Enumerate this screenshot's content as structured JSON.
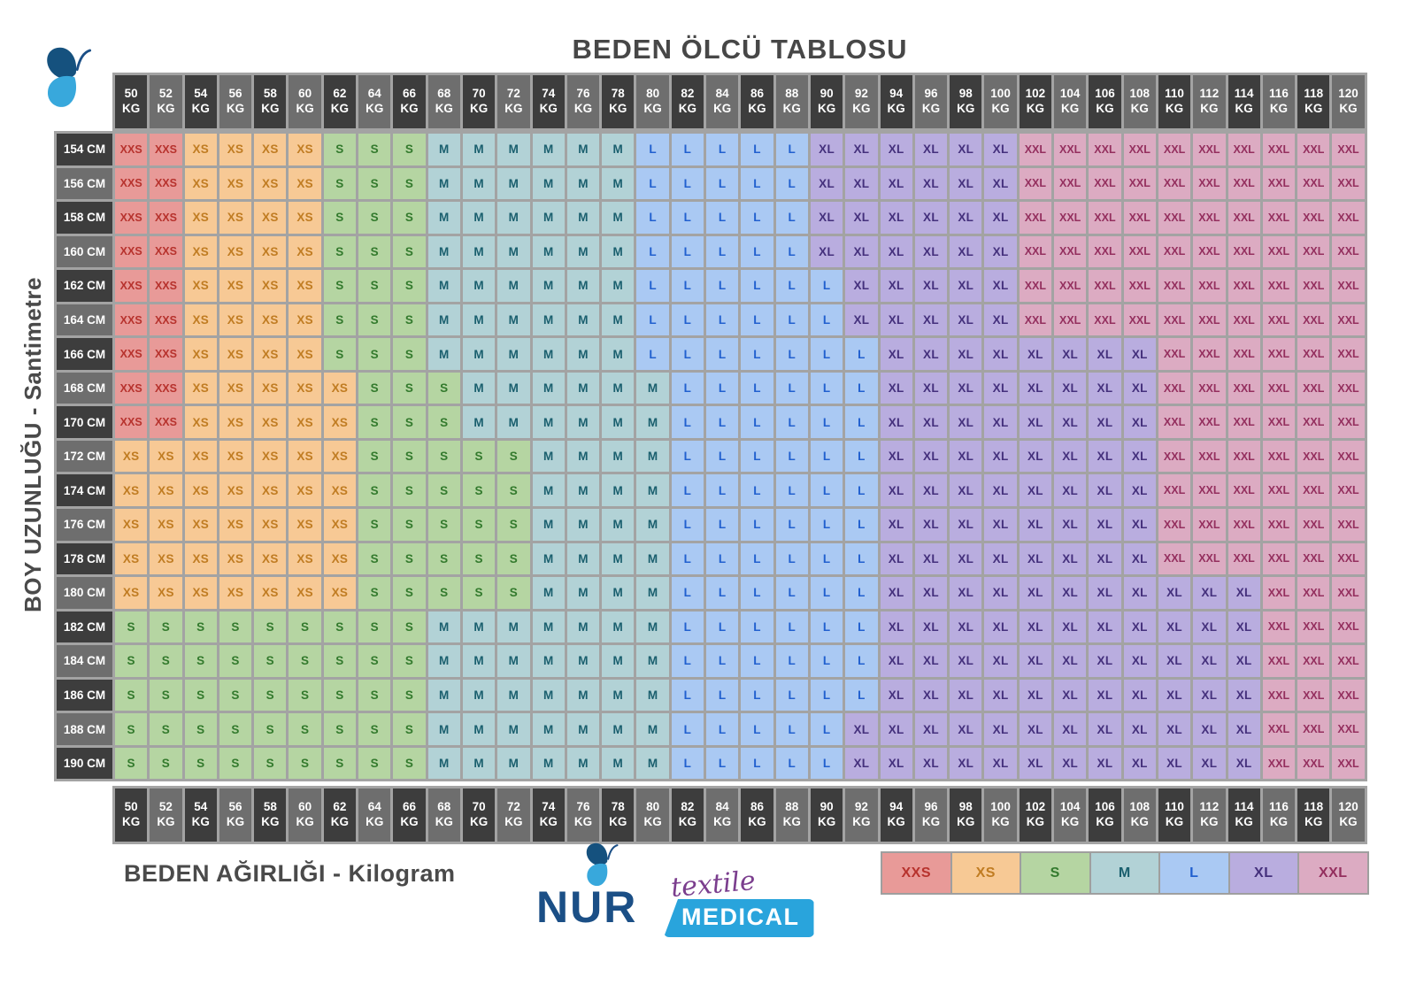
{
  "title": "BEDEN ÖLCÜ TABLOSU",
  "y_axis_label": "BOY UZUNLUĞU - Santimetre",
  "x_axis_label": "BEDEN AĞIRLIĞI - Kilogram",
  "logo": {
    "name": "NUR",
    "tagline_top": "textile",
    "tagline_bottom": "MEDICAL"
  },
  "legend": [
    "XXS",
    "XS",
    "S",
    "M",
    "L",
    "XL",
    "XXL"
  ],
  "size_colors": {
    "XXS": {
      "bg": "#e89a98",
      "fg": "#b7322d"
    },
    "XS": {
      "bg": "#f7c995",
      "fg": "#c07c22"
    },
    "S": {
      "bg": "#b5d5a2",
      "fg": "#337a2d"
    },
    "M": {
      "bg": "#b2d2d6",
      "fg": "#1a5f6e"
    },
    "L": {
      "bg": "#aac9f3",
      "fg": "#2160cf"
    },
    "XL": {
      "bg": "#b9addf",
      "fg": "#44307c"
    },
    "XXL": {
      "bg": "#dcabc2",
      "fg": "#942f5e"
    }
  },
  "header_colors": {
    "dark": "#3d3d3d",
    "light": "#6e6e6e",
    "text": "#ffffff",
    "grid": "#a3a3a3"
  },
  "brand_colors": {
    "dark_blue": "#1b4f86",
    "light_blue": "#29a4dc",
    "purple": "#7b3e8e"
  },
  "chart_data": {
    "type": "heatmap",
    "title": "BEDEN ÖLCÜ TABLOSU",
    "x_label": "BEDEN AĞIRLIĞI - Kilogram",
    "y_label": "BOY UZUNLUĞU - Santimetre",
    "x_unit": "KG",
    "y_unit": "CM",
    "legend_position": "bottom-right",
    "weights_kg": [
      50,
      52,
      54,
      56,
      58,
      60,
      62,
      64,
      66,
      68,
      70,
      72,
      74,
      76,
      78,
      80,
      82,
      84,
      86,
      88,
      90,
      92,
      94,
      96,
      98,
      100,
      102,
      104,
      106,
      108,
      110,
      112,
      114,
      116,
      118,
      120
    ],
    "heights_cm": [
      154,
      156,
      158,
      160,
      162,
      164,
      166,
      168,
      170,
      172,
      174,
      176,
      178,
      180,
      182,
      184,
      186,
      188,
      190
    ],
    "rows": [
      {
        "height_cm": 154,
        "runs": [
          [
            "XXS",
            2
          ],
          [
            "XS",
            4
          ],
          [
            "S",
            3
          ],
          [
            "M",
            6
          ],
          [
            "L",
            5
          ],
          [
            "XL",
            6
          ],
          [
            "XXL",
            10
          ]
        ]
      },
      {
        "height_cm": 156,
        "runs": [
          [
            "XXS",
            2
          ],
          [
            "XS",
            4
          ],
          [
            "S",
            3
          ],
          [
            "M",
            6
          ],
          [
            "L",
            5
          ],
          [
            "XL",
            6
          ],
          [
            "XXL",
            10
          ]
        ]
      },
      {
        "height_cm": 158,
        "runs": [
          [
            "XXS",
            2
          ],
          [
            "XS",
            4
          ],
          [
            "S",
            3
          ],
          [
            "M",
            6
          ],
          [
            "L",
            5
          ],
          [
            "XL",
            6
          ],
          [
            "XXL",
            10
          ]
        ]
      },
      {
        "height_cm": 160,
        "runs": [
          [
            "XXS",
            2
          ],
          [
            "XS",
            4
          ],
          [
            "S",
            3
          ],
          [
            "M",
            6
          ],
          [
            "L",
            5
          ],
          [
            "XL",
            6
          ],
          [
            "XXL",
            10
          ]
        ]
      },
      {
        "height_cm": 162,
        "runs": [
          [
            "XXS",
            2
          ],
          [
            "XS",
            4
          ],
          [
            "S",
            3
          ],
          [
            "M",
            6
          ],
          [
            "L",
            6
          ],
          [
            "XL",
            5
          ],
          [
            "XXL",
            10
          ]
        ]
      },
      {
        "height_cm": 164,
        "runs": [
          [
            "XXS",
            2
          ],
          [
            "XS",
            4
          ],
          [
            "S",
            3
          ],
          [
            "M",
            6
          ],
          [
            "L",
            6
          ],
          [
            "XL",
            5
          ],
          [
            "XXL",
            10
          ]
        ]
      },
      {
        "height_cm": 166,
        "runs": [
          [
            "XXS",
            2
          ],
          [
            "XS",
            4
          ],
          [
            "S",
            3
          ],
          [
            "M",
            6
          ],
          [
            "L",
            7
          ],
          [
            "XL",
            8
          ],
          [
            "XXL",
            6
          ]
        ]
      },
      {
        "height_cm": 168,
        "runs": [
          [
            "XXS",
            2
          ],
          [
            "XS",
            5
          ],
          [
            "S",
            3
          ],
          [
            "M",
            6
          ],
          [
            "L",
            6
          ],
          [
            "XL",
            8
          ],
          [
            "XXL",
            6
          ]
        ]
      },
      {
        "height_cm": 170,
        "runs": [
          [
            "XXS",
            2
          ],
          [
            "XS",
            5
          ],
          [
            "S",
            3
          ],
          [
            "M",
            6
          ],
          [
            "L",
            6
          ],
          [
            "XL",
            8
          ],
          [
            "XXL",
            6
          ]
        ]
      },
      {
        "height_cm": 172,
        "runs": [
          [
            "XS",
            7
          ],
          [
            "S",
            5
          ],
          [
            "M",
            4
          ],
          [
            "L",
            6
          ],
          [
            "XL",
            8
          ],
          [
            "XXL",
            6
          ]
        ]
      },
      {
        "height_cm": 174,
        "runs": [
          [
            "XS",
            7
          ],
          [
            "S",
            5
          ],
          [
            "M",
            4
          ],
          [
            "L",
            6
          ],
          [
            "XL",
            8
          ],
          [
            "XXL",
            6
          ]
        ]
      },
      {
        "height_cm": 176,
        "runs": [
          [
            "XS",
            7
          ],
          [
            "S",
            5
          ],
          [
            "M",
            4
          ],
          [
            "L",
            6
          ],
          [
            "XL",
            8
          ],
          [
            "XXL",
            6
          ]
        ]
      },
      {
        "height_cm": 178,
        "runs": [
          [
            "XS",
            7
          ],
          [
            "S",
            5
          ],
          [
            "M",
            4
          ],
          [
            "L",
            6
          ],
          [
            "XL",
            8
          ],
          [
            "XXL",
            6
          ]
        ]
      },
      {
        "height_cm": 180,
        "runs": [
          [
            "XS",
            7
          ],
          [
            "S",
            5
          ],
          [
            "M",
            4
          ],
          [
            "L",
            6
          ],
          [
            "XL",
            11
          ],
          [
            "XXL",
            3
          ]
        ]
      },
      {
        "height_cm": 182,
        "runs": [
          [
            "S",
            9
          ],
          [
            "M",
            7
          ],
          [
            "L",
            6
          ],
          [
            "XL",
            11
          ],
          [
            "XXL",
            3
          ]
        ]
      },
      {
        "height_cm": 184,
        "runs": [
          [
            "S",
            9
          ],
          [
            "M",
            7
          ],
          [
            "L",
            6
          ],
          [
            "XL",
            11
          ],
          [
            "XXL",
            3
          ]
        ]
      },
      {
        "height_cm": 186,
        "runs": [
          [
            "S",
            9
          ],
          [
            "M",
            7
          ],
          [
            "L",
            6
          ],
          [
            "XL",
            11
          ],
          [
            "XXL",
            3
          ]
        ]
      },
      {
        "height_cm": 188,
        "runs": [
          [
            "S",
            9
          ],
          [
            "M",
            7
          ],
          [
            "L",
            5
          ],
          [
            "XL",
            12
          ],
          [
            "XXL",
            3
          ]
        ]
      },
      {
        "height_cm": 190,
        "runs": [
          [
            "S",
            9
          ],
          [
            "M",
            7
          ],
          [
            "L",
            5
          ],
          [
            "XL",
            12
          ],
          [
            "XXL",
            3
          ]
        ]
      }
    ]
  }
}
